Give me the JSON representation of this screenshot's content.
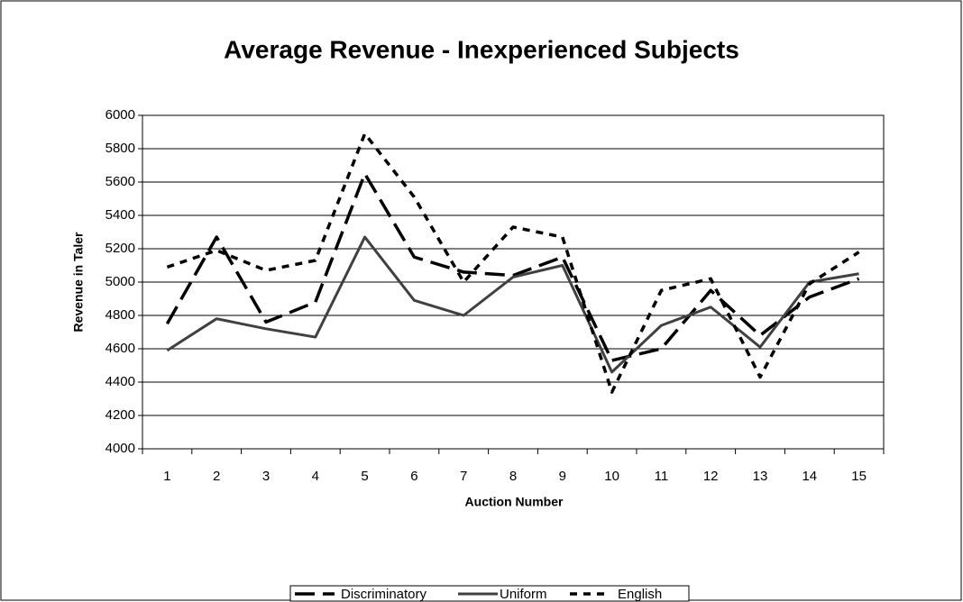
{
  "chart_data": {
    "type": "line",
    "title": "Average Revenue - Inexperienced Subjects",
    "x_label": "Auction Number",
    "y_label": "Revenue in Taler",
    "categories": [
      "1",
      "2",
      "3",
      "4",
      "5",
      "6",
      "7",
      "8",
      "9",
      "10",
      "11",
      "12",
      "13",
      "14",
      "15"
    ],
    "series": [
      {
        "name": "Discriminatory",
        "color": "#000000",
        "line_style": "long-dash",
        "values": [
          4750,
          5270,
          4760,
          4880,
          5650,
          5150,
          5060,
          5040,
          5150,
          4530,
          4600,
          4950,
          4680,
          4910,
          5020
        ]
      },
      {
        "name": "Uniform",
        "color": "#404040",
        "line_style": "solid",
        "values": [
          4590,
          4780,
          4720,
          4670,
          5270,
          4890,
          4800,
          5030,
          5100,
          4460,
          4740,
          4850,
          4610,
          5000,
          5050
        ]
      },
      {
        "name": "English",
        "color": "#000000",
        "line_style": "short-dash",
        "values": [
          5090,
          5190,
          5070,
          5130,
          5890,
          5510,
          5000,
          5330,
          5270,
          4340,
          4950,
          5020,
          4430,
          4990,
          5180
        ]
      }
    ],
    "ylim": [
      4000,
      6000
    ],
    "yticks": [
      4000,
      4200,
      4400,
      4600,
      4800,
      5000,
      5200,
      5400,
      5600,
      5800,
      6000
    ],
    "grid": true,
    "legend": "bottom"
  }
}
